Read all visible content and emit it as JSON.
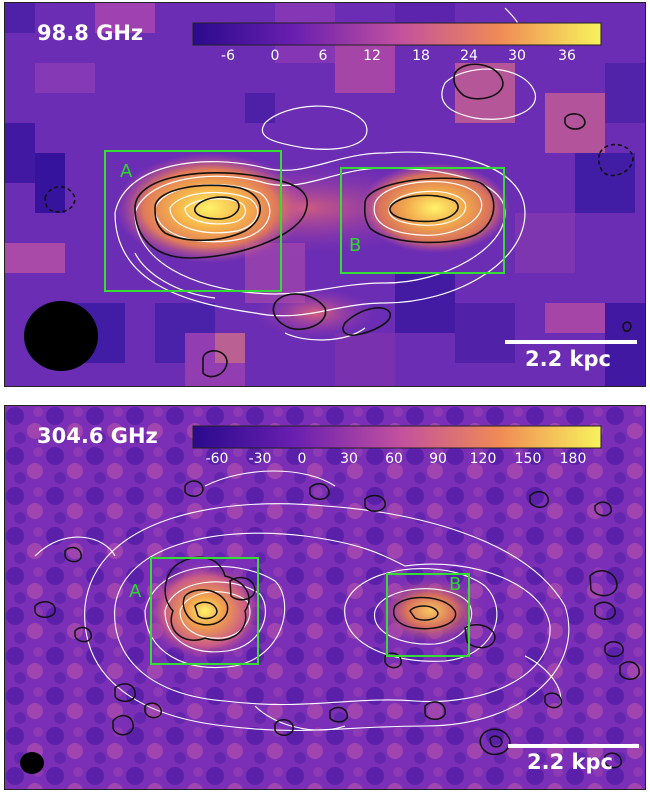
{
  "panels": [
    {
      "frequency_label": "98.8 GHz",
      "colorbar_ticks": [
        "-6",
        "0",
        "6",
        "12",
        "18",
        "24",
        "30",
        "36"
      ],
      "regions": [
        "A",
        "B"
      ],
      "scale_bar_label": "2.2 kpc"
    },
    {
      "frequency_label": "304.6 GHz",
      "colorbar_ticks": [
        "-60",
        "-30",
        "0",
        "30",
        "60",
        "90",
        "120",
        "150",
        "180"
      ],
      "regions": [
        "A",
        "B"
      ],
      "scale_bar_label": "2.2 kpc"
    }
  ],
  "colors": {
    "colormap_low": "#2a0a8c",
    "colormap_mid": "#c04fa0",
    "colormap_high": "#f7f08a",
    "region_box": "#33dd33",
    "contour_positive": "#000000",
    "contour_white": "#ffffff"
  }
}
